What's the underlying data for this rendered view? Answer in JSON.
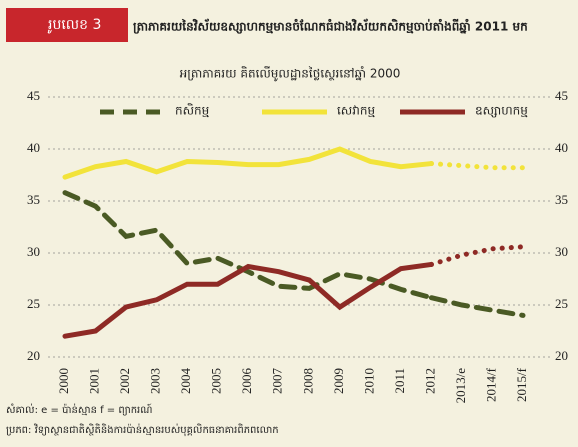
{
  "chart_data": {
    "type": "line",
    "label": "រូបលេខ 3",
    "title": "ត្រាភាគរយនៃវិស័យឧស្សាហកម្មមានចំណែកធំជាងវិស័យកសិកម្មចាប់តាំងពីឆ្នាំ 2011 មក",
    "subtitle": "អត្រាភាគរយ គិតលើមូលដ្ឋានថ្លៃស្ថេរនៅឆ្នាំ 2000",
    "categories": [
      "2000",
      "2001",
      "2002",
      "2003",
      "2004",
      "2005",
      "2006",
      "2007",
      "2008",
      "2009",
      "2010",
      "2011",
      "2012",
      "2013/e",
      "2014/f",
      "2015/f"
    ],
    "series": [
      {
        "name": "កសិកម្ម",
        "color": "#4a5a24",
        "values": [
          35.8,
          34.5,
          31.6,
          32.2,
          29,
          29.5,
          28.2,
          26.8,
          26.6,
          28,
          27.5,
          26.5,
          25.7,
          25,
          24.5,
          24
        ]
      },
      {
        "name": "សេវាកម្ម",
        "color": "#f2e33a",
        "values": [
          37.3,
          38.3,
          38.8,
          37.8,
          38.8,
          38.7,
          38.5,
          38.5,
          39,
          40,
          38.8,
          38.3,
          38.6,
          38.4,
          38.2,
          38.2
        ]
      },
      {
        "name": "ឧស្សាហកម្ម",
        "color": "#8e2a25",
        "values": [
          22,
          22.5,
          24.8,
          25.5,
          27,
          27,
          28.7,
          28.2,
          27.4,
          24.8,
          26.7,
          28.5,
          28.9,
          29.8,
          30.4,
          30.6
        ]
      }
    ],
    "ylim": [
      20,
      45
    ],
    "yticks": [
      20,
      25,
      30,
      35,
      40,
      45
    ],
    "y2lim": [
      20,
      45
    ],
    "y2ticks": [
      20,
      25,
      30,
      35,
      40,
      45
    ],
    "grid": true,
    "note": "សំគាល់: e = ប៉ាន់ស្មាន f = ព្យាករណ៍",
    "source": "ប្រភព: វិទ្យាស្ថានជាតិស្ថិតិនិងការប៉ាន់ស្មានរបស់បុគ្គលិកធនាគារពិភពលោក"
  }
}
